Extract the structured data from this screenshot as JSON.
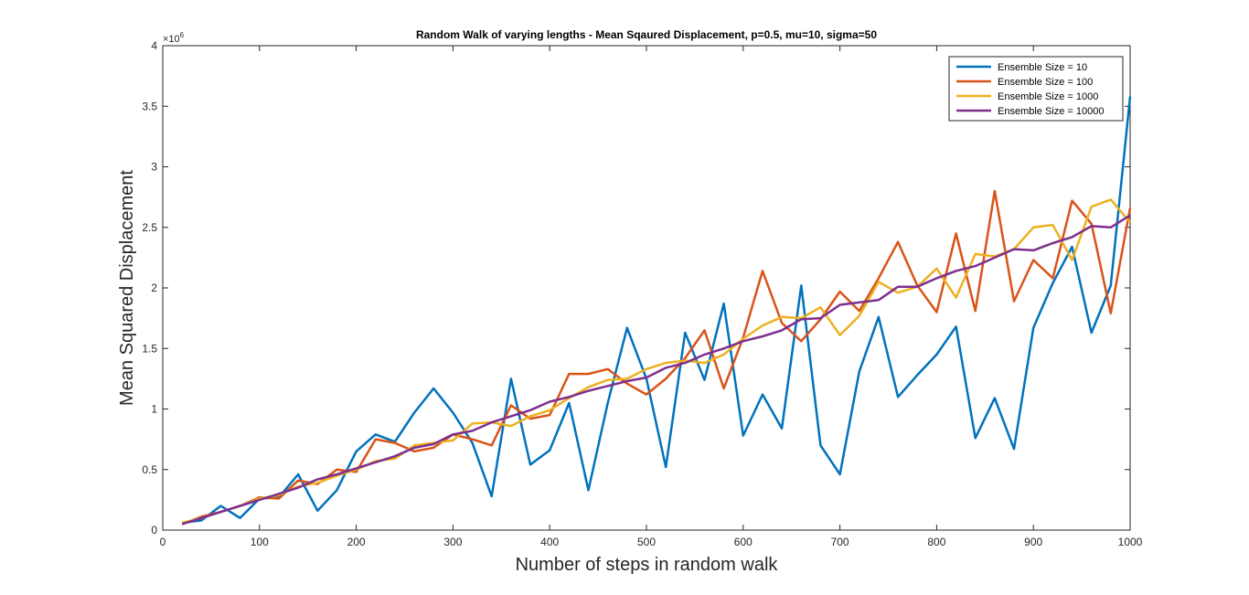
{
  "chart_data": {
    "type": "line",
    "title": "Random Walk of varying lengths - Mean Sqaured Displacement,  p=0.5, mu=10, sigma=50",
    "xlabel": "Number of steps in random walk",
    "ylabel": "Mean Squared Displacement",
    "y_exponent_label": "×10",
    "y_exponent_power": "6",
    "xlim": [
      0,
      1000
    ],
    "ylim": [
      0,
      4000000
    ],
    "xticks": [
      0,
      100,
      200,
      300,
      400,
      500,
      600,
      700,
      800,
      900,
      1000
    ],
    "xtick_labels": [
      "0",
      "100",
      "200",
      "300",
      "400",
      "500",
      "600",
      "700",
      "800",
      "900",
      "1000"
    ],
    "yticks": [
      0,
      500000,
      1000000,
      1500000,
      2000000,
      2500000,
      3000000,
      3500000,
      4000000
    ],
    "ytick_labels": [
      "0",
      "0.5",
      "1",
      "1.5",
      "2",
      "2.5",
      "3",
      "3.5",
      "4"
    ],
    "grid": false,
    "legend_position": "top-right",
    "x": [
      20,
      40,
      60,
      80,
      100,
      120,
      140,
      160,
      180,
      200,
      220,
      240,
      260,
      280,
      300,
      320,
      340,
      360,
      380,
      400,
      420,
      440,
      460,
      480,
      500,
      520,
      540,
      560,
      580,
      600,
      620,
      640,
      660,
      680,
      700,
      720,
      740,
      760,
      780,
      800,
      820,
      840,
      860,
      880,
      900,
      920,
      940,
      960,
      980,
      1000
    ],
    "series": [
      {
        "name": "Ensemble Size = 10",
        "color": "#0072BD",
        "values": [
          60000,
          80000,
          200000,
          100000,
          260000,
          270000,
          460000,
          160000,
          330000,
          650000,
          790000,
          730000,
          970000,
          1170000,
          970000,
          720000,
          280000,
          1250000,
          540000,
          660000,
          1050000,
          330000,
          1050000,
          1670000,
          1250000,
          520000,
          1630000,
          1240000,
          1870000,
          780000,
          1120000,
          840000,
          2020000,
          700000,
          460000,
          1310000,
          1760000,
          1100000,
          1280000,
          1450000,
          1680000,
          760000,
          1090000,
          670000,
          1670000,
          2040000,
          2340000,
          1630000,
          2020000,
          3580000
        ]
      },
      {
        "name": "Ensemble Size = 100",
        "color": "#D95319",
        "values": [
          50000,
          110000,
          150000,
          200000,
          270000,
          260000,
          410000,
          380000,
          500000,
          480000,
          750000,
          720000,
          650000,
          680000,
          790000,
          750000,
          700000,
          1030000,
          920000,
          950000,
          1290000,
          1290000,
          1330000,
          1210000,
          1120000,
          1250000,
          1420000,
          1650000,
          1170000,
          1590000,
          2140000,
          1710000,
          1560000,
          1740000,
          1970000,
          1810000,
          2080000,
          2380000,
          2020000,
          1800000,
          2450000,
          1810000,
          2800000,
          1890000,
          2230000,
          2080000,
          2720000,
          2530000,
          1790000,
          2660000
        ]
      },
      {
        "name": "Ensemble Size = 1000",
        "color": "#EDB120",
        "values": [
          60000,
          100000,
          150000,
          200000,
          260000,
          290000,
          360000,
          390000,
          450000,
          500000,
          570000,
          590000,
          700000,
          720000,
          740000,
          880000,
          890000,
          860000,
          940000,
          990000,
          1090000,
          1180000,
          1240000,
          1250000,
          1330000,
          1380000,
          1400000,
          1380000,
          1450000,
          1580000,
          1690000,
          1760000,
          1750000,
          1840000,
          1610000,
          1770000,
          2050000,
          1960000,
          2010000,
          2160000,
          1920000,
          2280000,
          2260000,
          2320000,
          2500000,
          2520000,
          2230000,
          2670000,
          2730000,
          2540000
        ]
      },
      {
        "name": "Ensemble Size = 10000",
        "color": "#7E2F8E",
        "values": [
          50000,
          100000,
          150000,
          200000,
          250000,
          300000,
          350000,
          420000,
          460000,
          510000,
          560000,
          610000,
          680000,
          710000,
          790000,
          820000,
          890000,
          940000,
          990000,
          1060000,
          1100000,
          1150000,
          1190000,
          1230000,
          1260000,
          1340000,
          1380000,
          1450000,
          1500000,
          1560000,
          1600000,
          1650000,
          1740000,
          1750000,
          1860000,
          1880000,
          1900000,
          2010000,
          2010000,
          2080000,
          2140000,
          2180000,
          2250000,
          2320000,
          2310000,
          2370000,
          2420000,
          2510000,
          2500000,
          2600000
        ]
      }
    ]
  }
}
